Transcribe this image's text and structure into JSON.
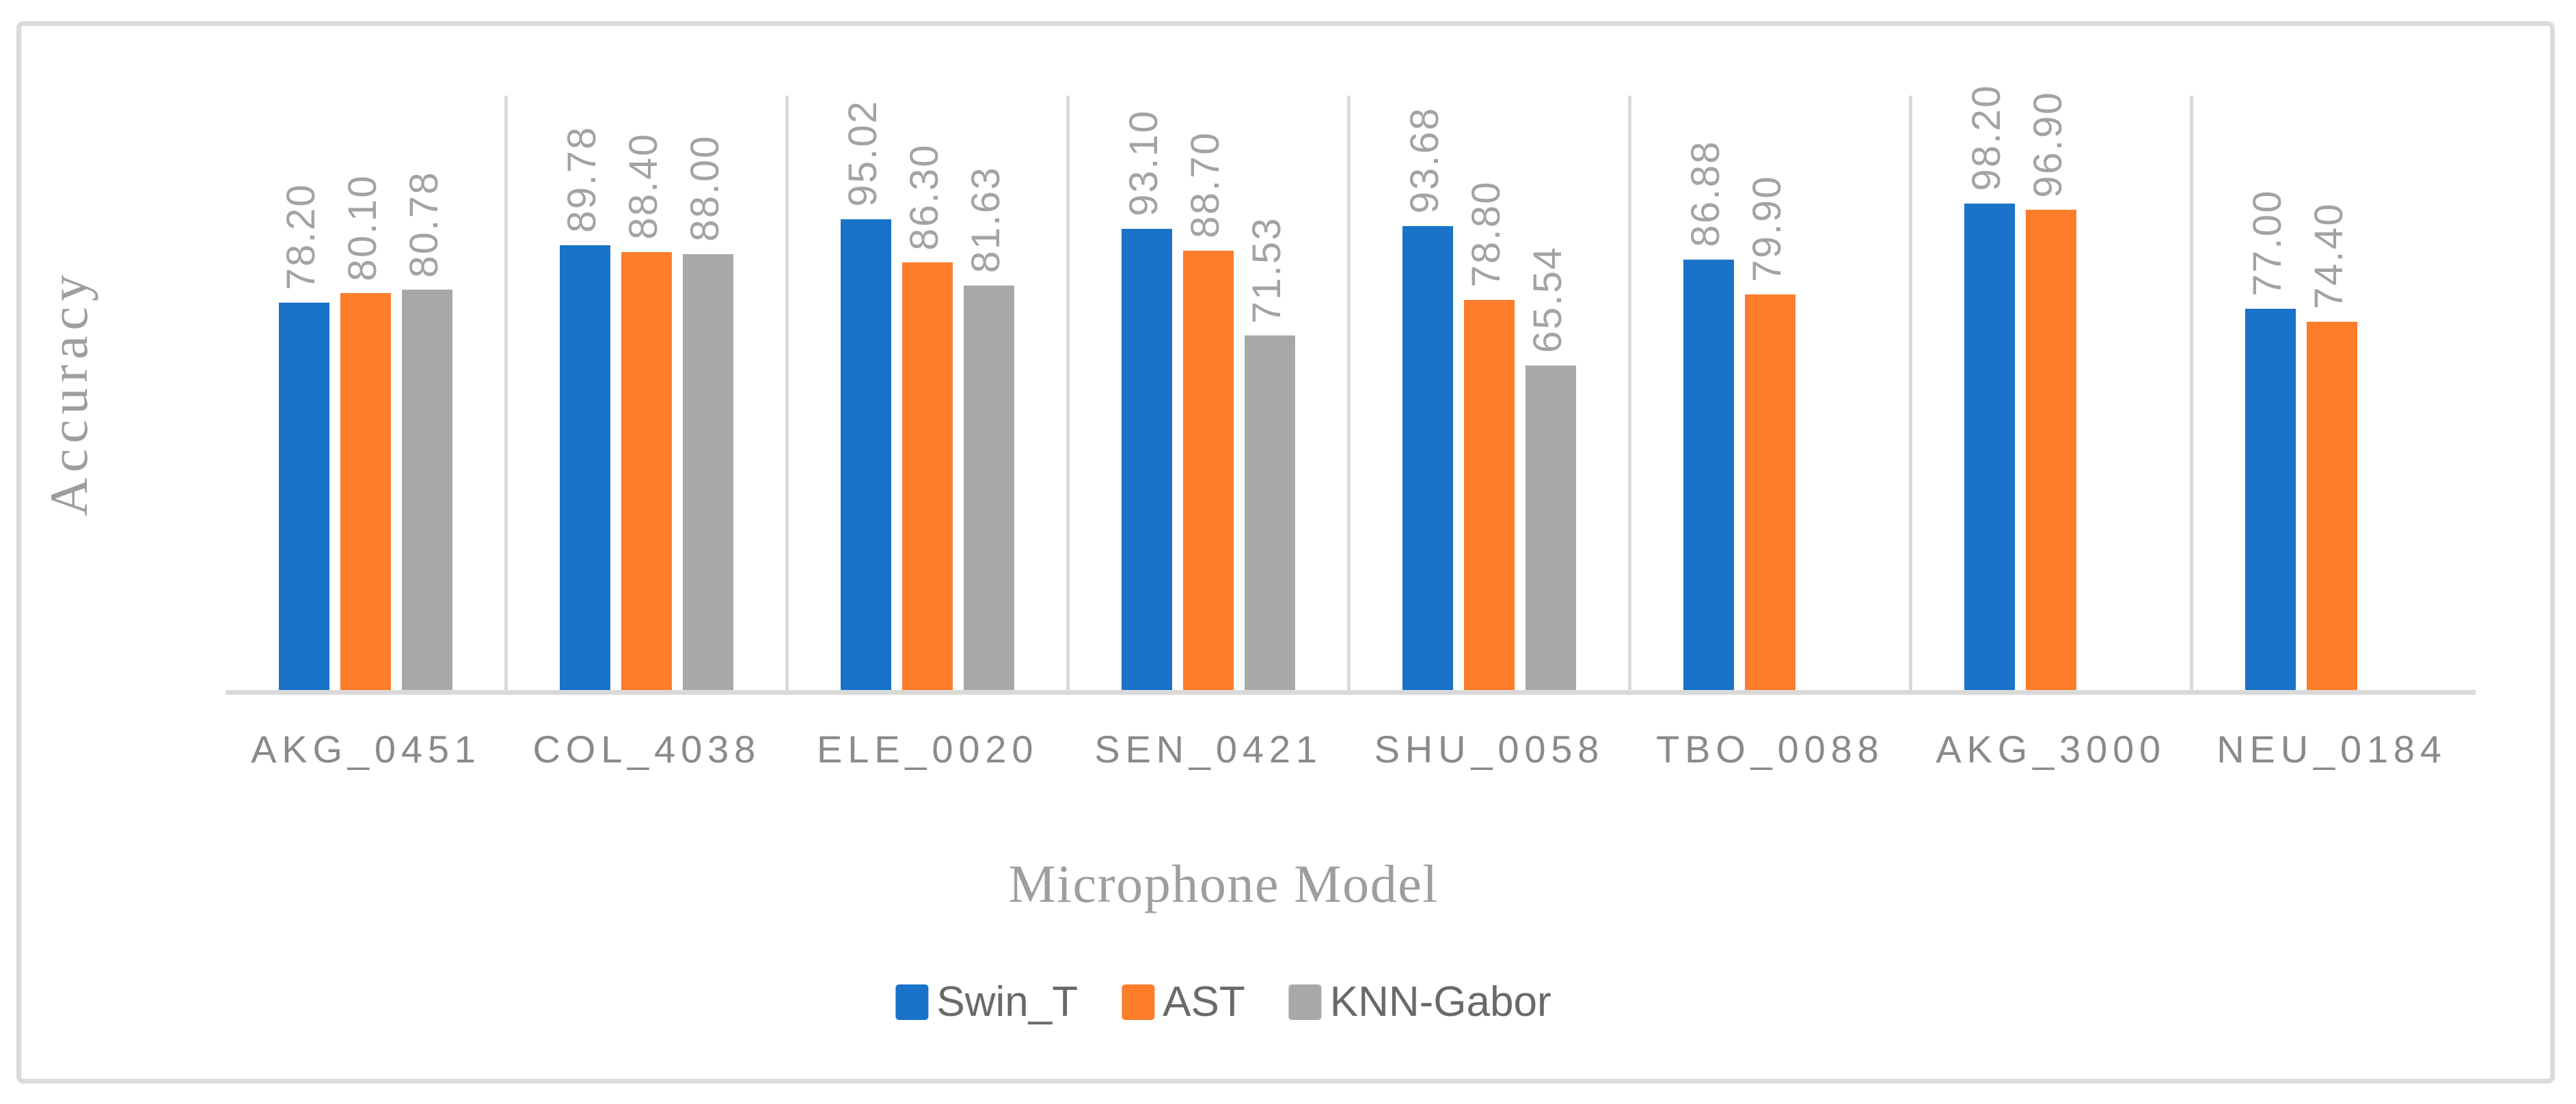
{
  "chart_data": {
    "type": "bar",
    "title": "",
    "xlabel": "Microphone Model",
    "ylabel": "Accuracy",
    "categories": [
      "AKG_0451",
      "COL_4038",
      "ELE_0020",
      "SEN_0421",
      "SHU_0058",
      "TBO_0088",
      "AKG_3000",
      "NEU_0184"
    ],
    "series": [
      {
        "name": "Swin_T",
        "color": "#1873C9",
        "values": [
          78.2,
          89.78,
          95.02,
          93.1,
          93.68,
          86.88,
          98.2,
          77.0
        ]
      },
      {
        "name": "AST",
        "color": "#FD7D2B",
        "values": [
          80.1,
          88.4,
          86.3,
          88.7,
          78.8,
          79.9,
          96.9,
          74.4
        ]
      },
      {
        "name": "KNN-Gabor",
        "color": "#A8A8A8",
        "values": [
          80.78,
          88.0,
          81.63,
          71.53,
          65.54,
          null,
          null,
          null
        ]
      }
    ],
    "ylim": [
      0,
      120
    ],
    "y_axis_visible": false,
    "grid": "vertical category separators only",
    "data_labels": {
      "format": "two-decimals",
      "rotation": 270,
      "position": "outside-end"
    },
    "legend_position": "bottom"
  },
  "styles": {
    "border_color": "#DBDBDB",
    "separator_color": "#D9D9D9",
    "axis_line_color": "#D9D9D9",
    "data_label_color": "#A3A3A3",
    "category_label_color": "#8A8A8A",
    "axis_title_color": "#9E9E9E",
    "legend_text_color": "#696969",
    "background": "#FFFFFF"
  }
}
